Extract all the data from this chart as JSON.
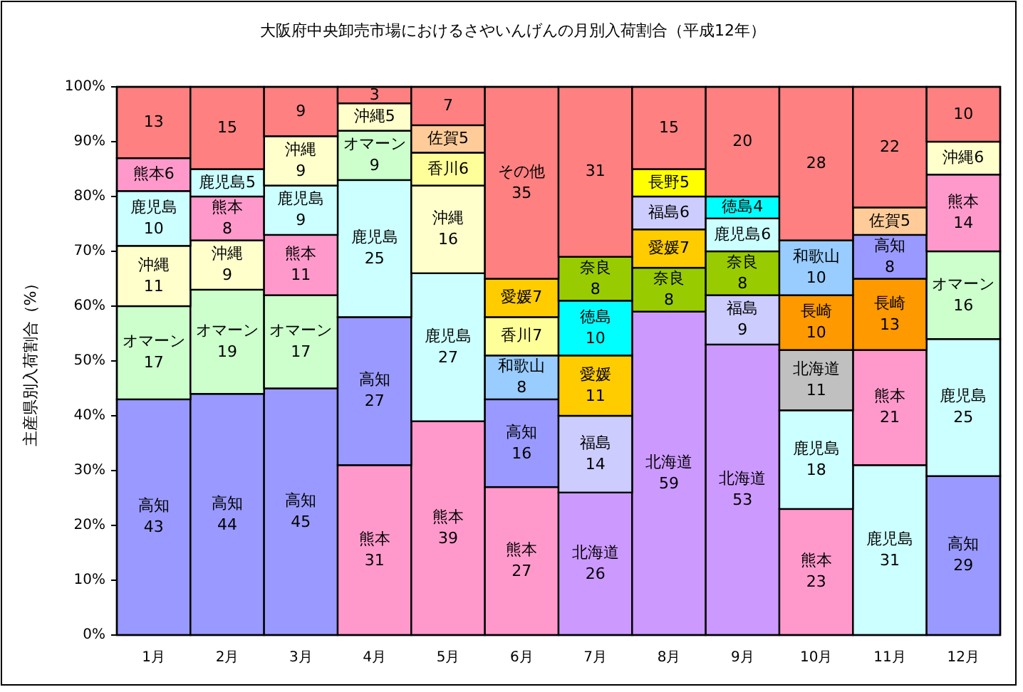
{
  "chart_data": {
    "type": "bar",
    "stacked": true,
    "title": "大阪府中央卸売市場におけるさやいんげんの月別入荷割合（平成12年）",
    "ylabel": "主産県別入荷割合（%）",
    "categories": [
      "1月",
      "2月",
      "3月",
      "4月",
      "5月",
      "6月",
      "7月",
      "8月",
      "9月",
      "10月",
      "11月",
      "12月"
    ],
    "ylim": [
      0,
      100
    ],
    "yticks": [
      {
        "value": 0,
        "label": "0%"
      },
      {
        "value": 10,
        "label": "10%"
      },
      {
        "value": 20,
        "label": "20%"
      },
      {
        "value": 30,
        "label": "30%"
      },
      {
        "value": 40,
        "label": "40%"
      },
      {
        "value": 50,
        "label": "50%"
      },
      {
        "value": 60,
        "label": "60%"
      },
      {
        "value": 70,
        "label": "70%"
      },
      {
        "value": 80,
        "label": "80%"
      },
      {
        "value": 90,
        "label": "90%"
      },
      {
        "value": 100,
        "label": "100%"
      }
    ],
    "series": [
      {
        "values": [
          43,
          44,
          45,
          31,
          39,
          27,
          26,
          59,
          53,
          23,
          31,
          29
        ],
        "colors": [
          "#9999ff",
          "#9999ff",
          "#9999ff",
          "#ff99cc",
          "#ff99cc",
          "#ff99cc",
          "#cc99ff",
          "#cc99ff",
          "#cc99ff",
          "#ff99cc",
          "#ccffff",
          "#9999ff"
        ],
        "value_labels": [
          "高知\n43",
          "高知\n44",
          "高知\n45",
          "熊本\n31",
          "熊本\n39",
          "熊本\n27",
          "北海道\n26",
          "北海道\n59",
          "北海道\n53",
          "熊本\n23",
          "鹿児島\n31",
          "高知\n29"
        ]
      },
      {
        "values": [
          17,
          19,
          17,
          27,
          27,
          16,
          14,
          8,
          9,
          18,
          21,
          25
        ],
        "colors": [
          "#ccffcc",
          "#ccffcc",
          "#ccffcc",
          "#9999ff",
          "#ccffff",
          "#9999ff",
          "#ccccff",
          "#99cc00",
          "#ccccff",
          "#ccffff",
          "#ff99cc",
          "#ccffff"
        ],
        "value_labels": [
          "オマーン\n17",
          "オマーン\n19",
          "オマーン\n17",
          "高知\n27",
          "鹿児島\n27",
          "高知\n16",
          "福島\n14",
          "奈良\n8",
          "福島\n9",
          "鹿児島\n18",
          "熊本\n21",
          "鹿児島\n25"
        ]
      },
      {
        "values": [
          11,
          9,
          11,
          25,
          16,
          8,
          11,
          7,
          8,
          11,
          13,
          16
        ],
        "colors": [
          "#ffffcc",
          "#ffffcc",
          "#ff99cc",
          "#ccffff",
          "#ffffcc",
          "#99ccff",
          "#ffcc00",
          "#ffcc00",
          "#99cc00",
          "#c0c0c0",
          "#ff9900",
          "#ccffcc"
        ],
        "value_labels": [
          "沖縄\n11",
          "沖縄\n9",
          "熊本\n11",
          "鹿児島\n25",
          "沖縄\n16",
          "和歌山\n8",
          "愛媛\n11",
          "愛媛7",
          "奈良\n8",
          "北海道\n11",
          "長崎\n13",
          "オマーン\n16"
        ]
      },
      {
        "values": [
          10,
          8,
          9,
          9,
          6,
          7,
          10,
          6,
          6,
          10,
          8,
          14
        ],
        "colors": [
          "#ccffff",
          "#ff99cc",
          "#ccffff",
          "#ccffcc",
          "#ffff99",
          "#ffff99",
          "#00ffff",
          "#ccccff",
          "#ccffff",
          "#ff9900",
          "#9999ff",
          "#ff99cc"
        ],
        "value_labels": [
          "鹿児島\n10",
          "熊本\n8",
          "鹿児島\n9",
          "オマーン\n9",
          "香川6",
          "香川7",
          "徳島\n10",
          "福島6",
          "鹿児島6",
          "長崎\n10",
          "高知\n8",
          "熊本\n14"
        ]
      },
      {
        "values": [
          6,
          5,
          9,
          5,
          5,
          7,
          8,
          5,
          4,
          10,
          5,
          6
        ],
        "colors": [
          "#ff99cc",
          "#ccffff",
          "#ffffcc",
          "#ffffcc",
          "#ffcc99",
          "#ffcc00",
          "#99cc00",
          "#ffff00",
          "#00ffff",
          "#99ccff",
          "#ffcc99",
          "#ffffcc"
        ],
        "value_labels": [
          "熊本6",
          "鹿児島5",
          "沖縄\n9",
          "沖縄5",
          "佐賀5",
          "愛媛7",
          "奈良\n8",
          "長野5",
          "徳島4",
          "和歌山\n10",
          "佐賀5",
          "沖縄6"
        ]
      },
      {
        "values": [
          13,
          15,
          9,
          3,
          7,
          35,
          31,
          15,
          20,
          28,
          22,
          10
        ],
        "colors": [
          "#ff8080",
          "#ff8080",
          "#ff8080",
          "#ff8080",
          "#ff8080",
          "#ff8080",
          "#ff8080",
          "#ff8080",
          "#ff8080",
          "#ff8080",
          "#ff8080",
          "#ff8080"
        ],
        "value_labels": [
          "13",
          "15",
          "9",
          "3",
          "7",
          "その他\n35",
          "31",
          "15",
          "20",
          "28",
          "22",
          "10"
        ]
      }
    ]
  }
}
